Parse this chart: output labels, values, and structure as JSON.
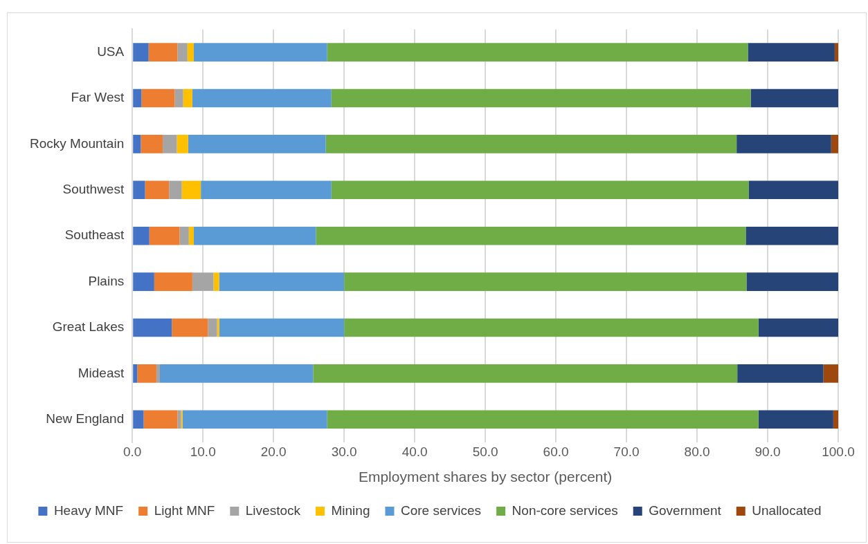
{
  "chart_data": {
    "type": "bar",
    "orientation": "horizontal",
    "stacked": true,
    "xlabel": "Employment shares by sector (percent)",
    "categories": [
      "USA",
      "Far West",
      "Rocky Mountain",
      "Southwest",
      "Southeast",
      "Plains",
      "Great Lakes",
      "Mideast",
      "New England"
    ],
    "series": [
      {
        "name": "Heavy MNF",
        "color": "#4472c4",
        "values": [
          2.3,
          1.3,
          1.2,
          1.8,
          2.4,
          3.1,
          5.6,
          0.7,
          1.6
        ]
      },
      {
        "name": "Light MNF",
        "color": "#ed7d31",
        "values": [
          4.1,
          4.7,
          3.1,
          3.4,
          4.3,
          5.4,
          5.1,
          2.7,
          4.8
        ]
      },
      {
        "name": "Livestock",
        "color": "#a5a5a5",
        "values": [
          1.4,
          1.2,
          2.0,
          1.8,
          1.3,
          3.0,
          1.3,
          0.5,
          0.5
        ]
      },
      {
        "name": "Mining",
        "color": "#ffc000",
        "values": [
          0.9,
          1.3,
          1.6,
          2.7,
          0.7,
          0.8,
          0.3,
          0,
          0.2
        ]
      },
      {
        "name": "Core services",
        "color": "#5b9bd5",
        "values": [
          18.9,
          19.7,
          19.5,
          18.5,
          17.3,
          17.7,
          17.7,
          21.7,
          20.5
        ]
      },
      {
        "name": "Non-core services",
        "color": "#70ad47",
        "values": [
          59.6,
          59.4,
          58.2,
          59.1,
          60.9,
          57.0,
          58.7,
          60.1,
          61.1
        ]
      },
      {
        "name": "Government",
        "color": "#264478",
        "values": [
          12.3,
          12.4,
          13.4,
          12.7,
          13.1,
          13.0,
          11.3,
          12.2,
          10.6
        ]
      },
      {
        "name": "Unallocated",
        "color": "#9e480e",
        "values": [
          0.5,
          0,
          1.0,
          0,
          0,
          0,
          0,
          2.1,
          0.7
        ]
      }
    ],
    "xlim": [
      0,
      100
    ],
    "xticks": [
      {
        "value": 0,
        "label": "0.0"
      },
      {
        "value": 10,
        "label": "10.0"
      },
      {
        "value": 20,
        "label": "20.0"
      },
      {
        "value": 30,
        "label": "30.0"
      },
      {
        "value": 40,
        "label": "40.0"
      },
      {
        "value": 50,
        "label": "50.0"
      },
      {
        "value": 60,
        "label": "60.0"
      },
      {
        "value": 70,
        "label": "70.0"
      },
      {
        "value": 80,
        "label": "80.0"
      },
      {
        "value": 90,
        "label": "90.0"
      },
      {
        "value": 100,
        "label": "100.0"
      }
    ],
    "grid": "x",
    "legend": "bottom"
  }
}
